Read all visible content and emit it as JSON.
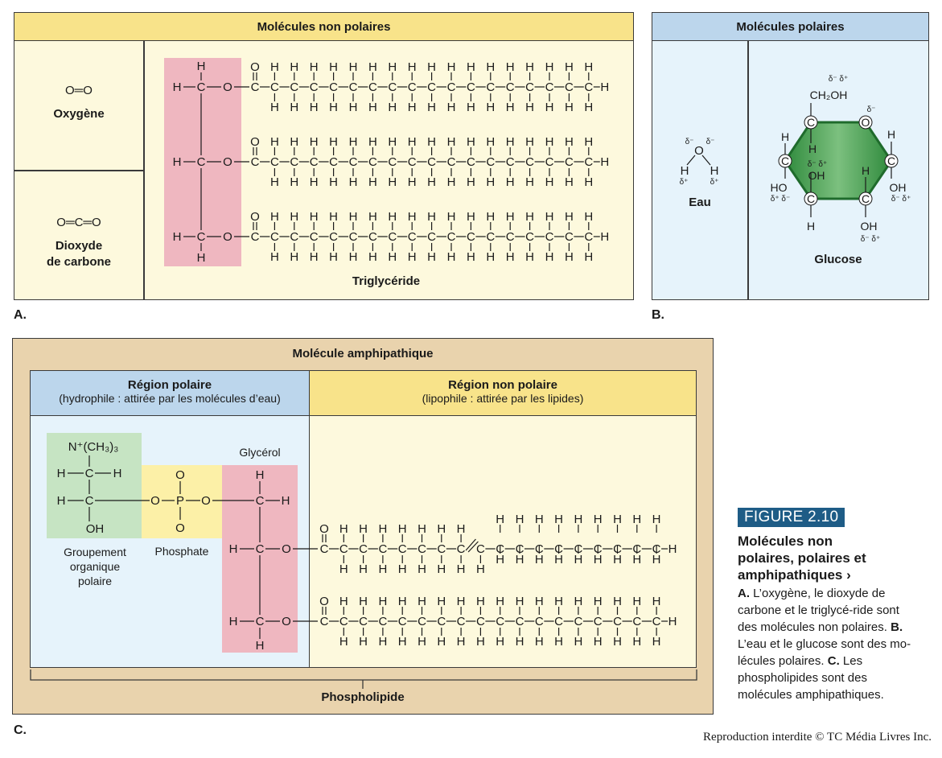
{
  "panel_a": {
    "header": "Molécules non polaires",
    "oxygen_formula": "O═O",
    "oxygen_label": "Oxygène",
    "co2_formula": "O═C═O",
    "co2_label_line1": "Dioxyde",
    "co2_label_line2": "de carbone",
    "triglyceride_label": "Triglycéride",
    "letter": "A."
  },
  "panel_b": {
    "header": "Molécules polaires",
    "water_label": "Eau",
    "glucose_label": "Glucose",
    "letter": "B.",
    "glucose_ch2oh": "CH₂OH"
  },
  "panel_c": {
    "header": "Molécule amphipathique",
    "polar_title": "Région polaire",
    "polar_subtitle": "(hydrophile : attirée par les molécules d’eau)",
    "nonpolar_title": "Région non polaire",
    "nonpolar_subtitle": "(lipophile : attirée par les lipides)",
    "choline_formula": "N⁺(CH₃)₃",
    "glycerol_label": "Glycérol",
    "group_label_line1": "Groupement",
    "group_label_line2": "organique",
    "group_label_line3": "polaire",
    "phosphate_label": "Phosphate",
    "phospholipid_label": "Phospholipide",
    "letter": "C."
  },
  "figure": {
    "badge": "FIGURE 2.10",
    "title_line1": "Molécules non",
    "title_line2": "polaires, polaires et",
    "title_line3": "amphipathiques ›",
    "caption_a_label": "A.",
    "caption_a_text": " L’oxygène, le dioxyde de carbone et le triglycé-ride sont des molécules non polaires.",
    "caption_b_label": " B.",
    "caption_b_text": " L’eau et le glucose sont des mo-lécules polaires.",
    "caption_c_label": " C.",
    "caption_c_text": " Les phospholipides sont des molécules amphipathiques."
  },
  "copyright": "Reproduction interdite © TC Média Livres Inc.",
  "colors": {
    "nonpolar_bg": "#fdf9dd",
    "nonpolar_header": "#f8e38a",
    "polar_bg": "#e6f3fb",
    "polar_header": "#bcd6ec",
    "amphipathic_outer": "#e9d3ad",
    "glycerol_pink": "#efb7c0",
    "choline_green": "#c6e4c3",
    "phosphate_yellow": "#fcf0a7",
    "glucose_green": "#3f9b4a",
    "figure_blue": "#1e5c86"
  }
}
